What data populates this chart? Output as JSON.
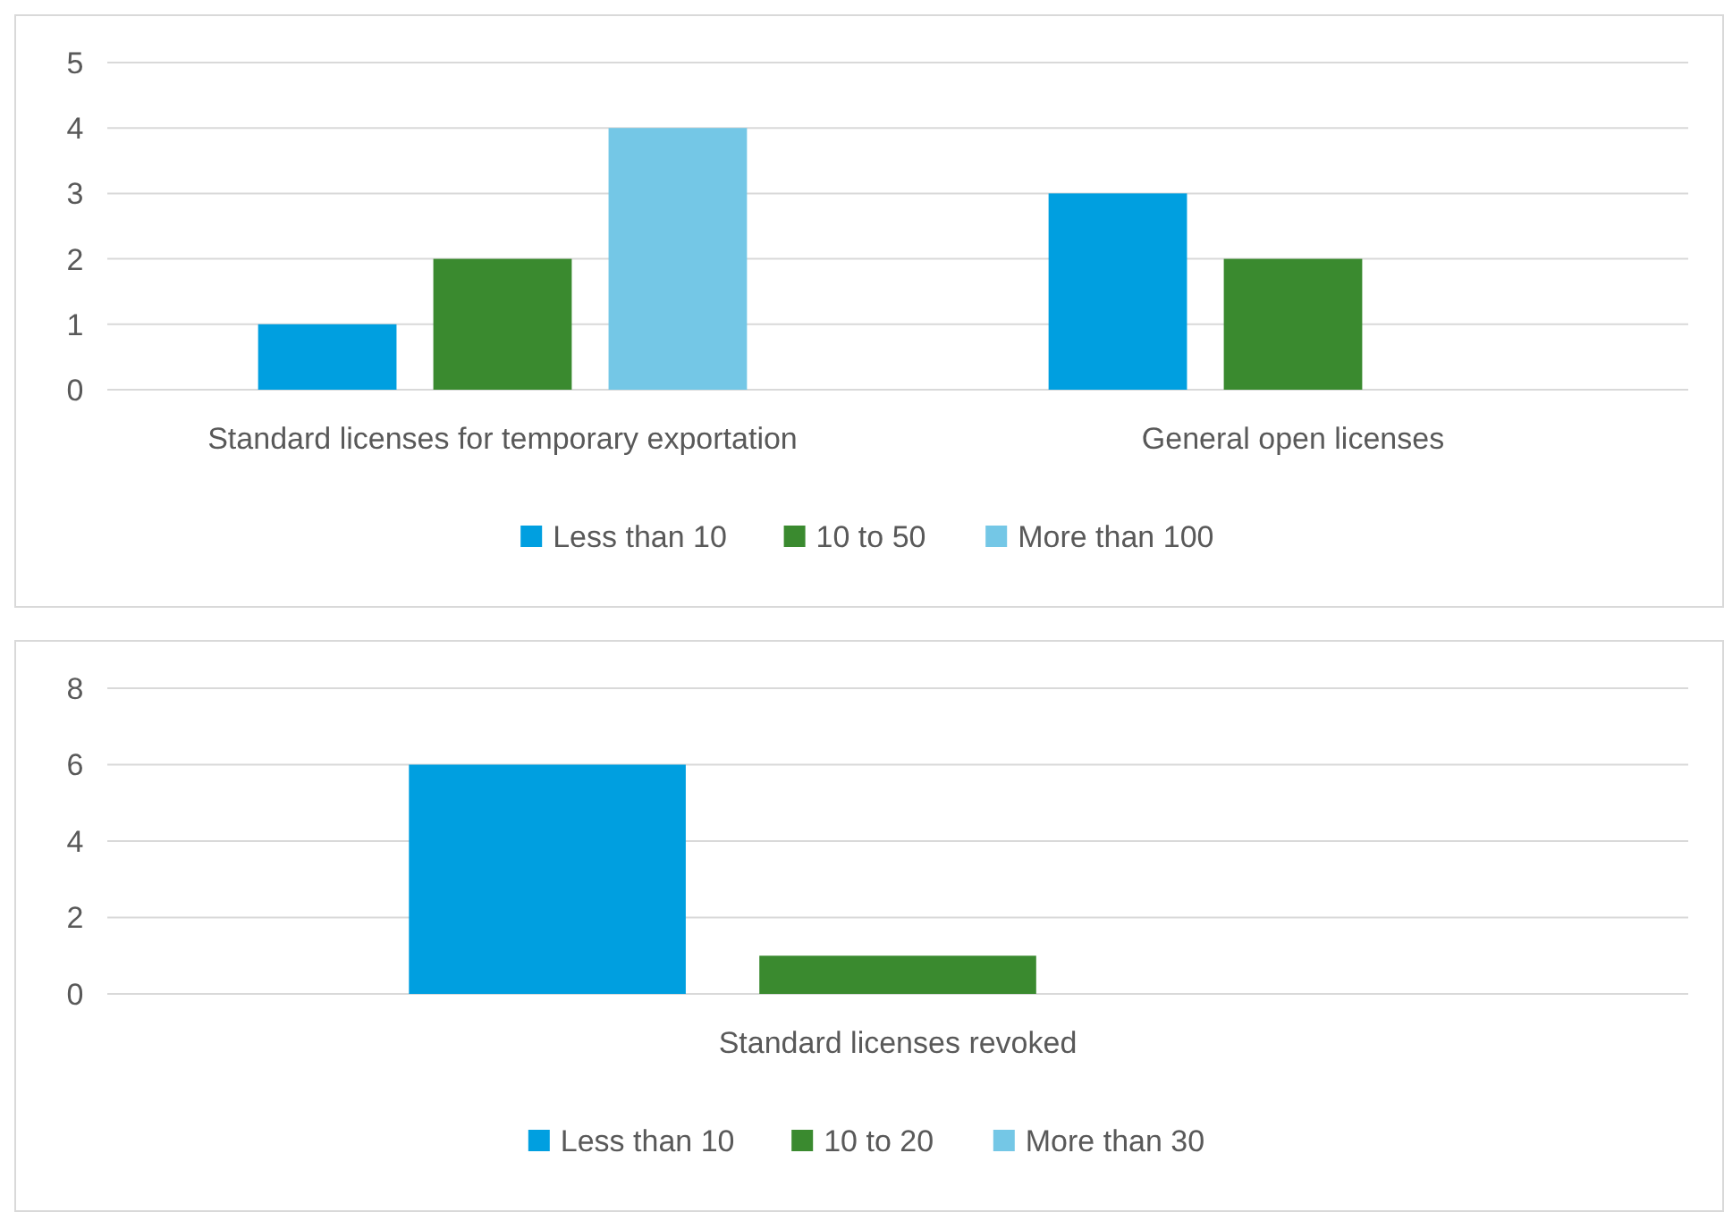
{
  "chart_data": [
    {
      "type": "bar",
      "categories": [
        "Standard licenses for temporary exportation",
        "General open licenses"
      ],
      "series": [
        {
          "name": "Less than 10",
          "color": "#009fe0",
          "values": [
            1,
            3
          ]
        },
        {
          "name": "10 to 50",
          "color": "#3a8a2f",
          "values": [
            2,
            2
          ]
        },
        {
          "name": "More than 100",
          "color": "#74c7e6",
          "values": [
            4,
            null
          ]
        }
      ],
      "ylim": [
        0,
        5
      ],
      "yticks": [
        0,
        1,
        2,
        3,
        4,
        5
      ],
      "grid": "y",
      "legend": "bottom"
    },
    {
      "type": "bar",
      "categories": [
        "Standard licenses revoked"
      ],
      "series": [
        {
          "name": "Less than 10",
          "color": "#009fe0",
          "values": [
            6
          ]
        },
        {
          "name": "10 to 20",
          "color": "#3a8a2f",
          "values": [
            1
          ]
        },
        {
          "name": "More than 30",
          "color": "#74c7e6",
          "values": [
            null
          ]
        }
      ],
      "ylim": [
        0,
        8
      ],
      "yticks": [
        0,
        2,
        4,
        6,
        8
      ],
      "grid": "y",
      "legend": "bottom"
    }
  ]
}
